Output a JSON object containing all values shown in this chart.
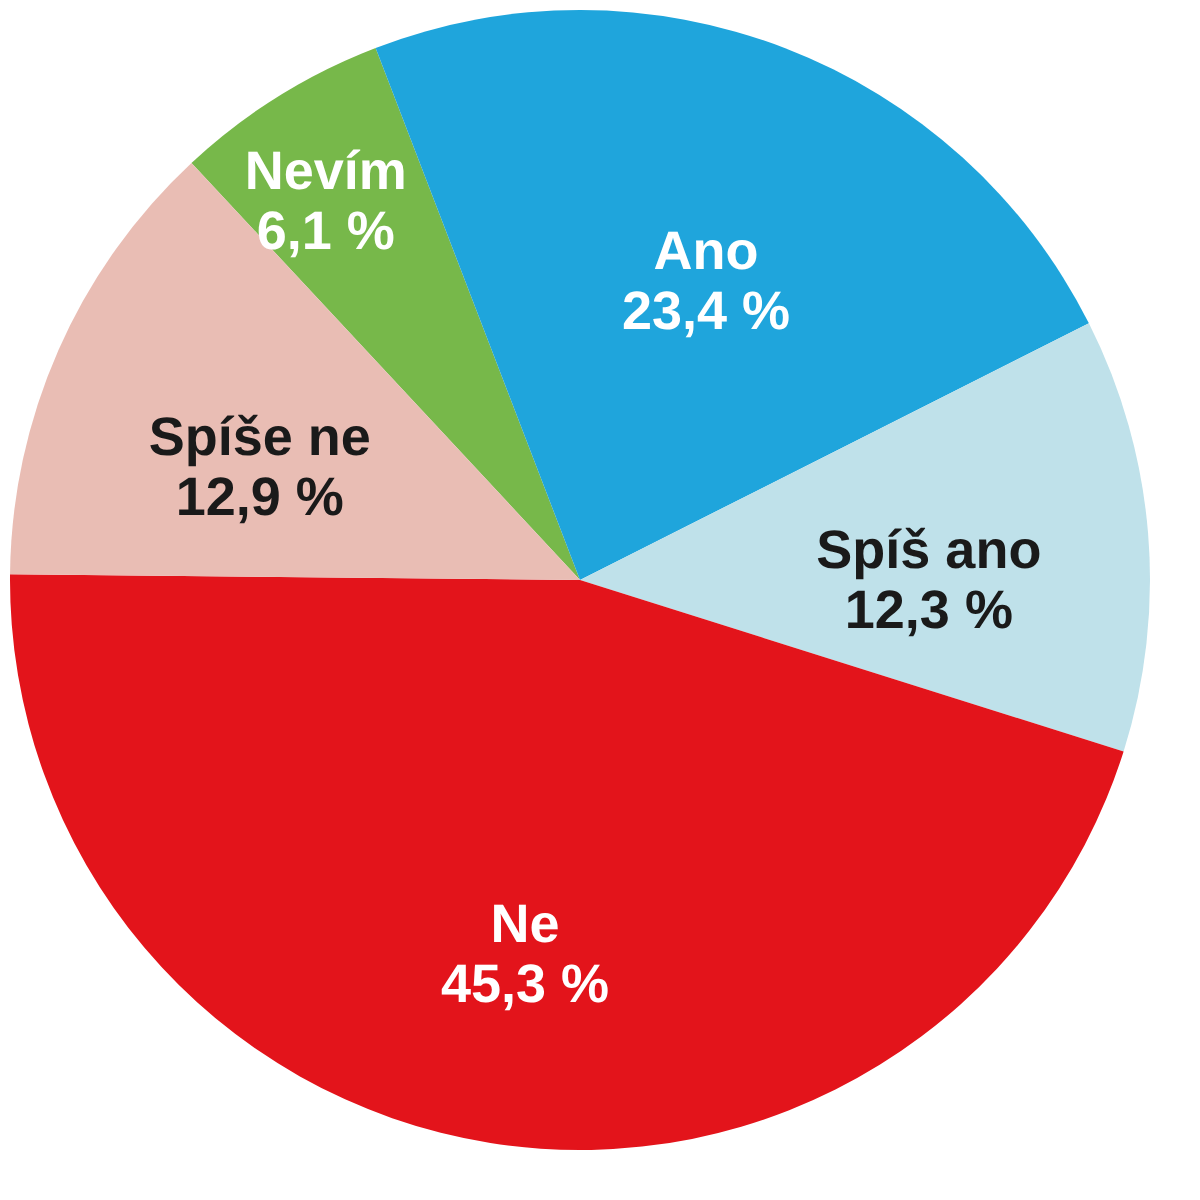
{
  "chart_data": {
    "type": "pie",
    "categories": [
      "Nevím",
      "Ano",
      "Spíš ano",
      "Ne",
      "Spíše ne"
    ],
    "values": [
      6.1,
      23.4,
      12.3,
      45.3,
      12.9
    ],
    "colors": [
      "#77b84a",
      "#1fa5dc",
      "#bfe1ea",
      "#e3141b",
      "#e9bdb4"
    ],
    "value_labels": [
      "6,1 %",
      "23,4 %",
      "12,3 %",
      "45,3 %",
      "12,9 %"
    ],
    "legend": false
  }
}
